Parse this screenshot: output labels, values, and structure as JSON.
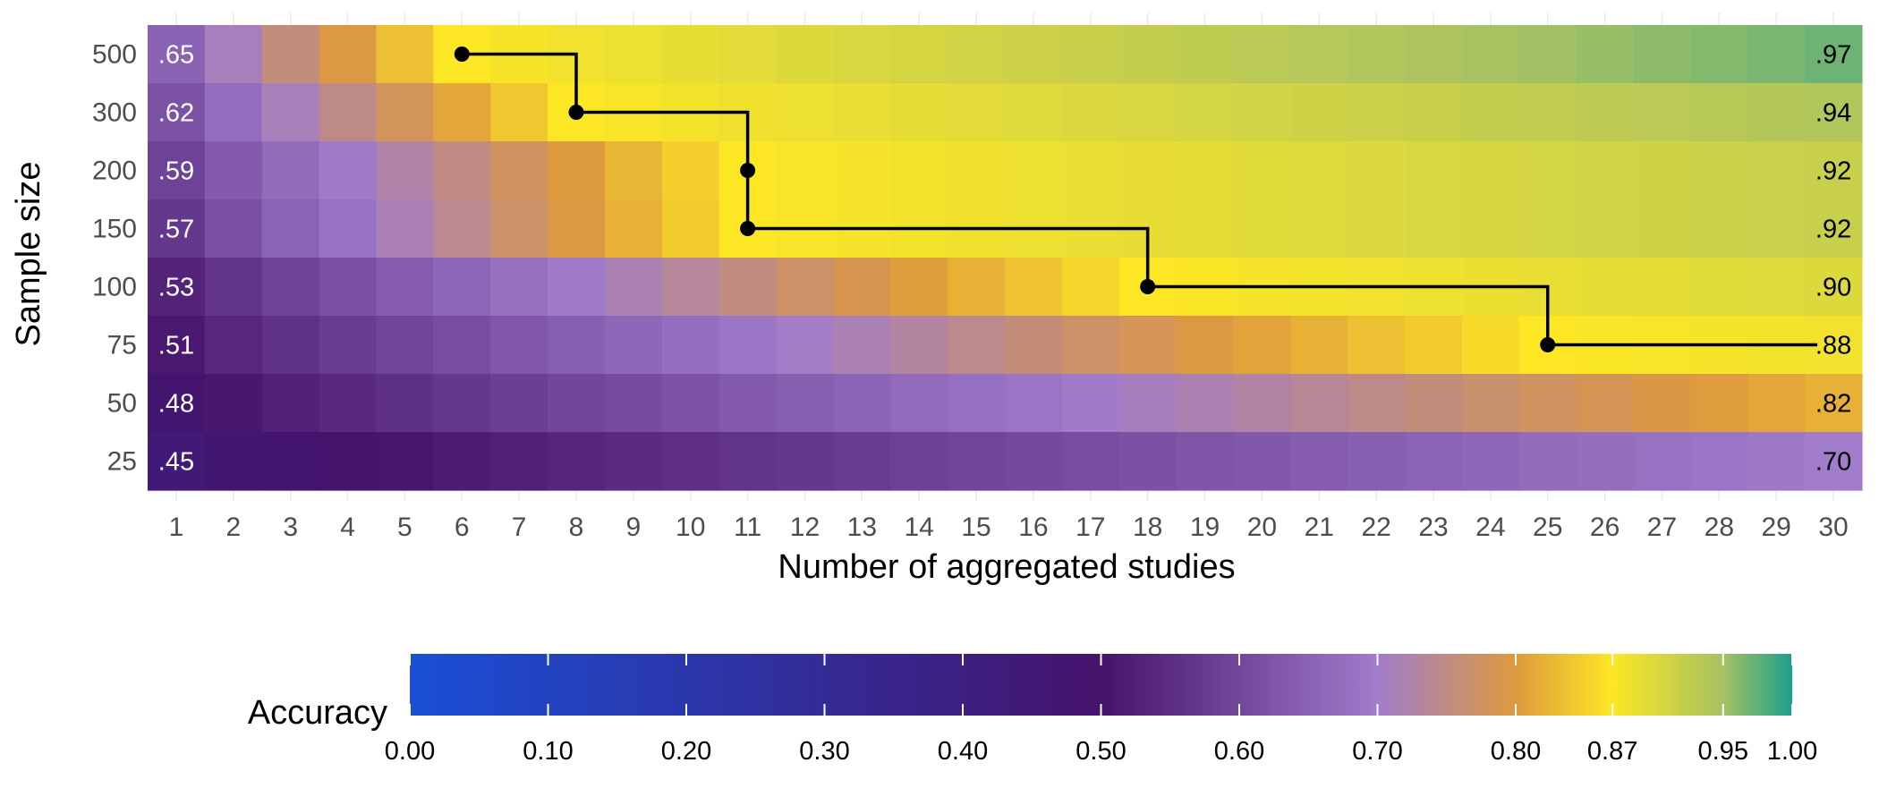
{
  "chart_data": {
    "type": "heatmap",
    "title": "",
    "xlabel": "Number of aggregated studies",
    "ylabel": "Sample size",
    "x_categories": [
      "1",
      "2",
      "3",
      "4",
      "5",
      "6",
      "7",
      "8",
      "9",
      "10",
      "11",
      "12",
      "13",
      "14",
      "15",
      "16",
      "17",
      "18",
      "19",
      "20",
      "21",
      "22",
      "23",
      "24",
      "25",
      "26",
      "27",
      "28",
      "29",
      "30"
    ],
    "y_categories": [
      "500",
      "300",
      "200",
      "150",
      "100",
      "75",
      "50",
      "25"
    ],
    "first_column_labels": [
      ".65",
      ".62",
      ".59",
      ".57",
      ".53",
      ".51",
      ".48",
      ".45"
    ],
    "last_column_labels": [
      ".97",
      ".94",
      ".92",
      ".92",
      ".90",
      ".88",
      ".82",
      ".70"
    ],
    "row_endpoints": [
      {
        "sample_size": "500",
        "first": 0.65,
        "last": 0.97,
        "k_mid": 6,
        "k_mid_value": 0.87
      },
      {
        "sample_size": "300",
        "first": 0.62,
        "last": 0.94,
        "k_mid": 8,
        "k_mid_value": 0.87
      },
      {
        "sample_size": "200",
        "first": 0.59,
        "last": 0.92,
        "k_mid": 11,
        "k_mid_value": 0.87
      },
      {
        "sample_size": "150",
        "first": 0.57,
        "last": 0.92,
        "k_mid": 11,
        "k_mid_value": 0.87
      },
      {
        "sample_size": "100",
        "first": 0.53,
        "last": 0.9,
        "k_mid": 18,
        "k_mid_value": 0.87
      },
      {
        "sample_size": "75",
        "first": 0.51,
        "last": 0.88,
        "k_mid": 25,
        "k_mid_value": 0.87
      },
      {
        "sample_size": "50",
        "first": 0.48,
        "last": 0.82,
        "k_mid": null,
        "k_mid_value": null
      },
      {
        "sample_size": "25",
        "first": 0.45,
        "last": 0.7,
        "k_mid": null,
        "k_mid_value": null
      }
    ],
    "threshold_path": {
      "threshold": 0.87,
      "points": [
        {
          "x": 6,
          "y": "500"
        },
        {
          "x": 8,
          "y": "300"
        },
        {
          "x": 11,
          "y": "200"
        },
        {
          "x": 11,
          "y": "150"
        },
        {
          "x": 18,
          "y": "100"
        },
        {
          "x": 25,
          "y": "75"
        }
      ],
      "path_end_x": 30
    },
    "legend": {
      "title": "Accuracy",
      "position": "bottom",
      "ticks": [
        {
          "value": 0.0,
          "label": "0.00"
        },
        {
          "value": 0.1,
          "label": "0.10"
        },
        {
          "value": 0.2,
          "label": "0.20"
        },
        {
          "value": 0.3,
          "label": "0.30"
        },
        {
          "value": 0.4,
          "label": "0.40"
        },
        {
          "value": 0.5,
          "label": "0.50"
        },
        {
          "value": 0.6,
          "label": "0.60"
        },
        {
          "value": 0.7,
          "label": "0.70"
        },
        {
          "value": 0.8,
          "label": "0.80"
        },
        {
          "value": 0.87,
          "label": "0.87"
        },
        {
          "value": 0.95,
          "label": "0.95"
        },
        {
          "value": 1.0,
          "label": "1.00"
        }
      ],
      "color_stops": [
        {
          "value": 0.0,
          "color": "#1a4fd6"
        },
        {
          "value": 0.5,
          "color": "#45136b"
        },
        {
          "value": 0.7,
          "color": "#a17ccb"
        },
        {
          "value": 0.8,
          "color": "#de9a3e"
        },
        {
          "value": 0.87,
          "color": "#fde725"
        },
        {
          "value": 0.95,
          "color": "#a6c163"
        },
        {
          "value": 1.0,
          "color": "#1b9f8b"
        }
      ]
    },
    "grid": false
  }
}
